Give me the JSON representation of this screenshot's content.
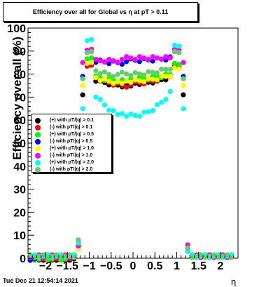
{
  "title": "Efficiency over all for Global vs   η at pT > 0.11",
  "timestamp": "Tue Dec 21 12:54:14 2021",
  "chart_data": {
    "type": "scatter",
    "title": "Efficiency over all for Global vs   η at pT > 0.11",
    "xlabel": "η",
    "ylabel": "Efficiency over all (%)",
    "xlim": [
      -2.4,
      2.4
    ],
    "ylim": [
      0,
      100
    ],
    "xticks": [
      -2,
      -1.5,
      -1,
      -0.5,
      0,
      0.5,
      1,
      1.5,
      2
    ],
    "xtick_labels": [
      "−2",
      "−1.5",
      "−1",
      "−0.5",
      "0",
      "0.5",
      "1",
      "1.5",
      "2"
    ],
    "yticks": [
      0,
      10,
      20,
      30,
      40,
      50,
      60,
      70,
      80,
      90,
      100
    ],
    "ytick_labels": [
      "0",
      "10",
      "20",
      "30",
      "40",
      "50",
      "60",
      "70",
      "80",
      "90",
      "100"
    ],
    "grid": false,
    "legend_position": "middle-left",
    "series": [
      {
        "name": "(+) with pT/|q| > 0.1",
        "color": "#000000",
        "shape_params": {
          "plateau": 79,
          "center": 76,
          "edge": 22,
          "peak": 86,
          "edge2": 48
        }
      },
      {
        "name": "(-) with pT/|q| > 0.1",
        "color": "#ff0000",
        "shape_params": {
          "plateau": 80,
          "center": 76,
          "edge": 22,
          "peak": 84,
          "edge2": 48
        }
      },
      {
        "name": "(+) with pT/|q| > 0.5",
        "color": "#00ff00",
        "shape_params": {
          "plateau": 80,
          "center": 78,
          "edge": 36,
          "peak": 86,
          "edge2": 36
        }
      },
      {
        "name": "(-) with pT/|q| > 0.5",
        "color": "#0000ff",
        "shape_params": {
          "plateau": 87,
          "center": 86,
          "edge": 35,
          "peak": 90,
          "edge2": 34
        }
      },
      {
        "name": "(+) with pT/|q| > 1.0",
        "color": "#ffff00",
        "shape_params": {
          "plateau": 80,
          "center": 77,
          "edge": 32,
          "peak": 84,
          "edge2": 62
        }
      },
      {
        "name": "(-) with pT/|q| > 1.0",
        "color": "#ff00ff",
        "shape_params": {
          "plateau": 87,
          "center": 87,
          "edge": 34,
          "peak": 91,
          "edge2": 35
        }
      },
      {
        "name": "(+) with pT/|q| > 2.0",
        "color": "#00ffff",
        "shape_params": {
          "plateau": 73,
          "center": 62,
          "edge": 36,
          "peak": 94,
          "edge2": 43
        }
      },
      {
        "name": "(-) with pT/|q| > 2.0",
        "color": "#66cc66",
        "shape_params": {
          "plateau": 83,
          "center": 80,
          "edge": 37,
          "peak": 90,
          "edge2": 37
        }
      }
    ]
  }
}
